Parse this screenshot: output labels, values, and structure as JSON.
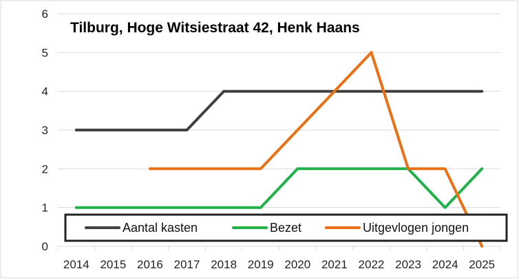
{
  "chart_data": {
    "type": "line",
    "title": "Tilburg, Hoge Witsiestraat 42, Henk Haans",
    "xlabel": "",
    "ylabel": "",
    "categories": [
      "2014",
      "2015",
      "2016",
      "2017",
      "2018",
      "2019",
      "2020",
      "2021",
      "2022",
      "2023",
      "2024",
      "2025"
    ],
    "ylim": [
      0,
      6
    ],
    "yticks": [
      0,
      1,
      2,
      3,
      4,
      5,
      6
    ],
    "grid": "horizontal",
    "legend": "bottom",
    "series": [
      {
        "name": "Aantal kasten",
        "color": "#404040",
        "values": [
          3,
          3,
          3,
          3,
          4,
          4,
          4,
          4,
          4,
          4,
          4,
          4
        ]
      },
      {
        "name": "Bezet",
        "color": "#21B14B",
        "values": [
          1,
          1,
          1,
          1,
          1,
          1,
          2,
          2,
          2,
          2,
          1,
          2
        ]
      },
      {
        "name": "Uitgevlogen jongen",
        "color": "#EA7015",
        "values": [
          null,
          null,
          2,
          2,
          2,
          2,
          3,
          4,
          5,
          2,
          2,
          0
        ]
      }
    ]
  }
}
